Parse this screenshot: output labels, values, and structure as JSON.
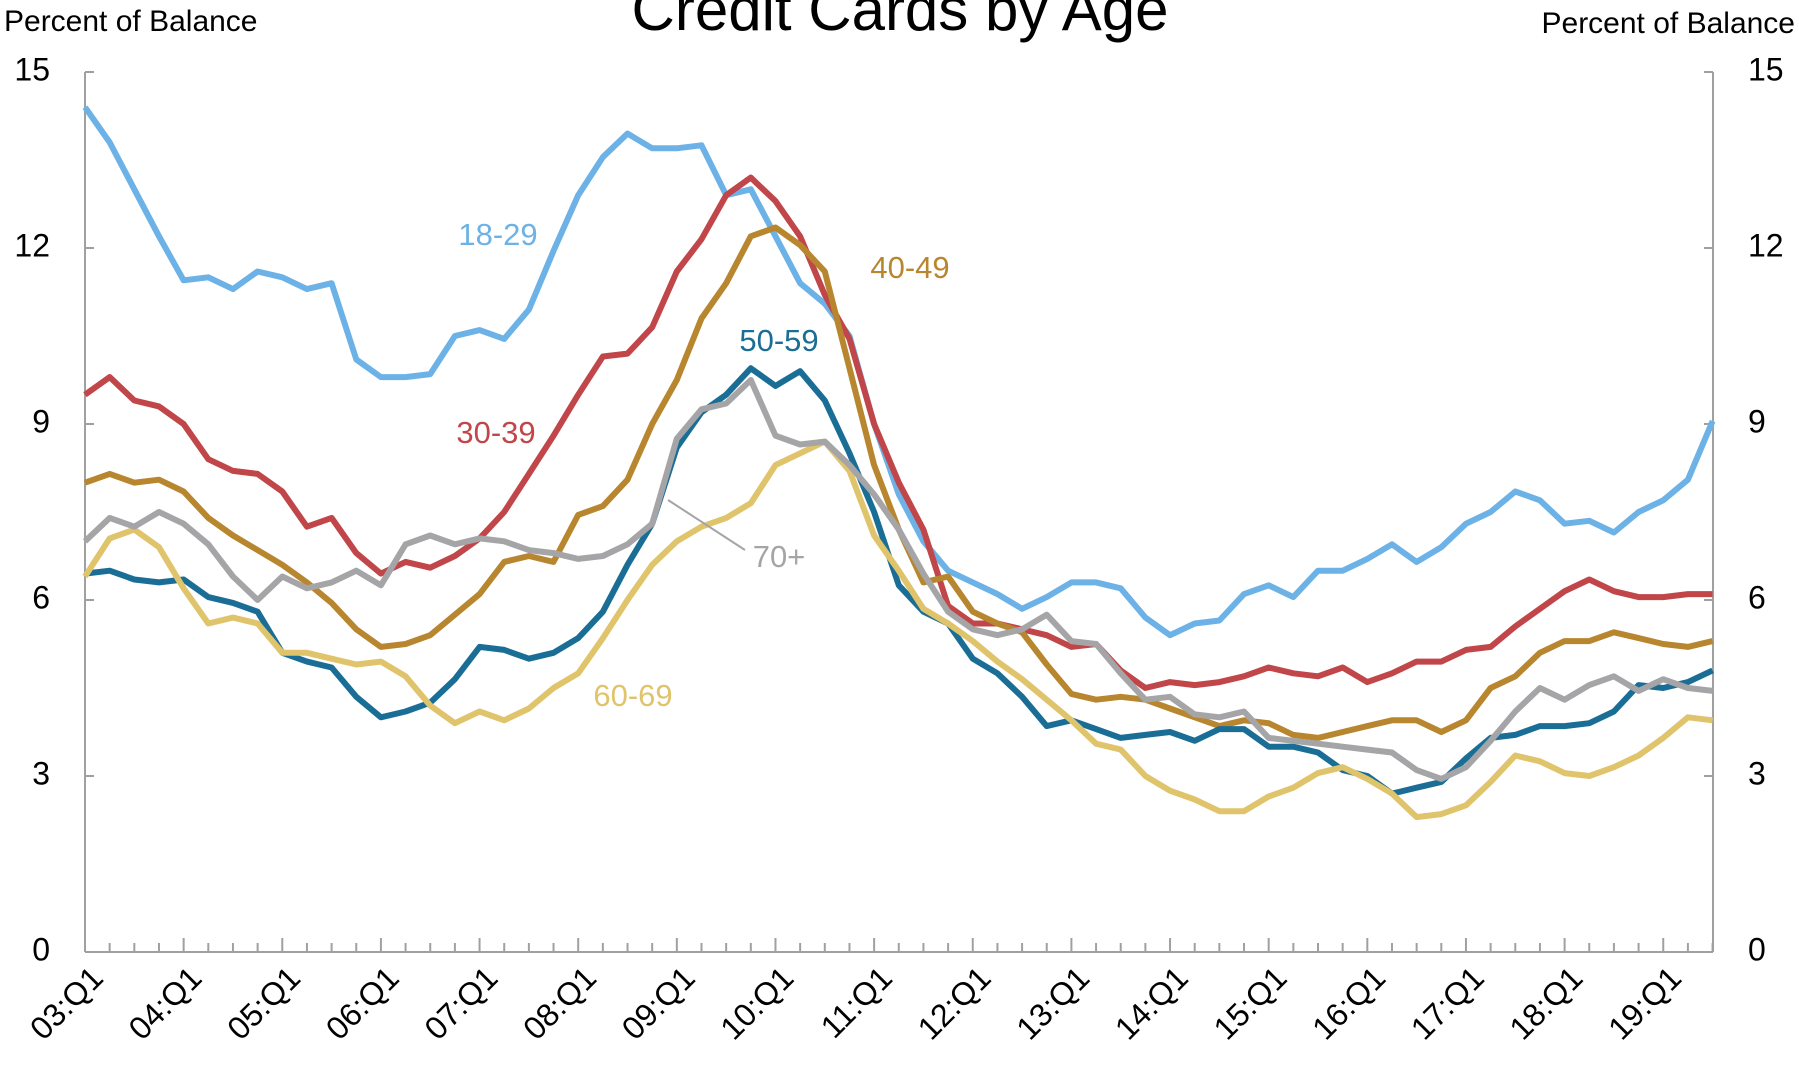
{
  "chart_data": {
    "type": "line",
    "title": "Credit Cards by Age",
    "ylabel": "Percent of Balance",
    "y2label": "Percent of Balance",
    "categories": [
      "03:Q1",
      null,
      null,
      null,
      "04:Q1",
      null,
      null,
      null,
      "05:Q1",
      null,
      null,
      null,
      "06:Q1",
      null,
      null,
      null,
      "07:Q1",
      null,
      null,
      null,
      "08:Q1",
      null,
      null,
      null,
      "09:Q1",
      null,
      null,
      null,
      "10:Q1",
      null,
      null,
      null,
      "11:Q1",
      null,
      null,
      null,
      "12:Q1",
      null,
      null,
      null,
      "13:Q1",
      null,
      null,
      null,
      "14:Q1",
      null,
      null,
      null,
      "15:Q1",
      null,
      null,
      null,
      "16:Q1",
      null,
      null,
      null,
      "17:Q1",
      null,
      null,
      null,
      "18:Q1",
      null,
      null,
      null,
      "19:Q1",
      null,
      null
    ],
    "ylim": [
      0,
      15
    ],
    "yticks": [
      0,
      3,
      6,
      9,
      12,
      15
    ],
    "y2lim": [
      0,
      15
    ],
    "y2ticks": [
      0,
      3,
      6,
      9,
      12,
      15
    ],
    "grid": false,
    "series": [
      {
        "name": "18-29",
        "color": "#6cb2e6",
        "values": [
          14.4,
          13.8,
          13.0,
          12.2,
          11.45,
          11.5,
          11.3,
          11.6,
          11.5,
          11.3,
          11.4,
          10.1,
          9.8,
          9.8,
          9.85,
          10.5,
          10.6,
          10.45,
          10.95,
          11.95,
          12.9,
          13.55,
          13.95,
          13.7,
          13.7,
          13.75,
          12.9,
          13.0,
          12.2,
          11.4,
          11.05,
          10.5,
          9.0,
          7.8,
          7.0,
          6.5,
          6.3,
          6.1,
          5.85,
          6.05,
          6.3,
          6.3,
          6.2,
          5.7,
          5.4,
          5.6,
          5.65,
          6.1,
          6.25,
          6.05,
          6.5,
          6.5,
          6.7,
          6.95,
          6.65,
          6.9,
          7.3,
          7.5,
          7.85,
          7.7,
          7.3,
          7.35,
          7.15,
          7.5,
          7.7,
          8.05,
          9.05
        ]
      },
      {
        "name": "30-39",
        "color": "#c1464a",
        "values": [
          9.5,
          9.8,
          9.4,
          9.3,
          9.0,
          8.4,
          8.2,
          8.15,
          7.85,
          7.25,
          7.4,
          6.8,
          6.45,
          6.65,
          6.55,
          6.75,
          7.05,
          7.5,
          8.15,
          8.8,
          9.5,
          10.15,
          10.2,
          10.65,
          11.6,
          12.15,
          12.9,
          13.2,
          12.8,
          12.2,
          11.2,
          10.45,
          9.0,
          8.0,
          7.2,
          5.9,
          5.6,
          5.6,
          5.5,
          5.4,
          5.2,
          5.25,
          4.8,
          4.5,
          4.6,
          4.55,
          4.6,
          4.7,
          4.85,
          4.75,
          4.7,
          4.85,
          4.6,
          4.75,
          4.95,
          4.95,
          5.15,
          5.2,
          5.55,
          5.85,
          6.15,
          6.35,
          6.15,
          6.05,
          6.05,
          6.1,
          6.1
        ]
      },
      {
        "name": "40-49",
        "color": "#b8862e",
        "values": [
          8.0,
          8.15,
          8.0,
          8.05,
          7.85,
          7.4,
          7.1,
          6.85,
          6.6,
          6.3,
          5.95,
          5.5,
          5.2,
          5.25,
          5.4,
          5.75,
          6.1,
          6.65,
          6.75,
          6.65,
          7.45,
          7.6,
          8.05,
          9.0,
          9.75,
          10.8,
          11.4,
          12.2,
          12.35,
          12.05,
          11.6,
          9.95,
          8.3,
          7.2,
          6.3,
          6.4,
          5.8,
          5.6,
          5.45,
          4.9,
          4.4,
          4.3,
          4.35,
          4.3,
          4.15,
          4.0,
          3.85,
          3.95,
          3.9,
          3.7,
          3.65,
          3.75,
          3.85,
          3.95,
          3.95,
          3.75,
          3.95,
          4.5,
          4.7,
          5.1,
          5.3,
          5.3,
          5.45,
          5.35,
          5.25,
          5.2,
          5.3
        ]
      },
      {
        "name": "50-59",
        "color": "#1a6e96",
        "values": [
          6.45,
          6.5,
          6.35,
          6.3,
          6.35,
          6.05,
          5.95,
          5.8,
          5.1,
          4.95,
          4.85,
          4.35,
          4.0,
          4.1,
          4.25,
          4.65,
          5.2,
          5.15,
          5.0,
          5.1,
          5.35,
          5.8,
          6.6,
          7.3,
          8.6,
          9.2,
          9.5,
          9.95,
          9.65,
          9.9,
          9.4,
          8.5,
          7.5,
          6.25,
          5.8,
          5.6,
          5.0,
          4.75,
          4.35,
          3.85,
          3.95,
          3.8,
          3.65,
          3.7,
          3.75,
          3.6,
          3.8,
          3.8,
          3.5,
          3.5,
          3.4,
          3.1,
          3.0,
          2.7,
          2.8,
          2.9,
          3.3,
          3.65,
          3.7,
          3.85,
          3.85,
          3.9,
          4.1,
          4.55,
          4.5,
          4.6,
          4.8
        ]
      },
      {
        "name": "60-69",
        "color": "#e0c46c",
        "values": [
          6.4,
          7.05,
          7.2,
          6.9,
          6.2,
          5.6,
          5.7,
          5.6,
          5.1,
          5.1,
          5.0,
          4.9,
          4.95,
          4.7,
          4.2,
          3.9,
          4.1,
          3.95,
          4.15,
          4.5,
          4.75,
          5.35,
          6.0,
          6.6,
          7.0,
          7.25,
          7.4,
          7.65,
          8.3,
          8.5,
          8.7,
          8.2,
          7.1,
          6.5,
          5.85,
          5.6,
          5.3,
          4.95,
          4.65,
          4.3,
          3.95,
          3.55,
          3.45,
          3.0,
          2.75,
          2.6,
          2.4,
          2.4,
          2.65,
          2.8,
          3.05,
          3.15,
          2.95,
          2.7,
          2.3,
          2.35,
          2.5,
          2.9,
          3.35,
          3.25,
          3.05,
          3.0,
          3.15,
          3.35,
          3.65,
          4.0,
          3.95
        ]
      },
      {
        "name": "70+",
        "color": "#a5a5a8",
        "values": [
          7.0,
          7.4,
          7.25,
          7.5,
          7.3,
          6.95,
          6.4,
          6.0,
          6.4,
          6.2,
          6.3,
          6.5,
          6.25,
          6.95,
          7.1,
          6.95,
          7.05,
          7.0,
          6.85,
          6.8,
          6.7,
          6.75,
          6.95,
          7.3,
          8.75,
          9.25,
          9.35,
          9.75,
          8.8,
          8.65,
          8.7,
          8.3,
          7.8,
          7.2,
          6.45,
          5.8,
          5.5,
          5.4,
          5.5,
          5.75,
          5.3,
          5.25,
          4.75,
          4.3,
          4.35,
          4.05,
          4.0,
          4.1,
          3.65,
          3.6,
          3.55,
          3.5,
          3.45,
          3.4,
          3.1,
          2.95,
          3.15,
          3.6,
          4.1,
          4.5,
          4.3,
          4.55,
          4.7,
          4.45,
          4.65,
          4.5,
          4.45
        ]
      }
    ]
  }
}
